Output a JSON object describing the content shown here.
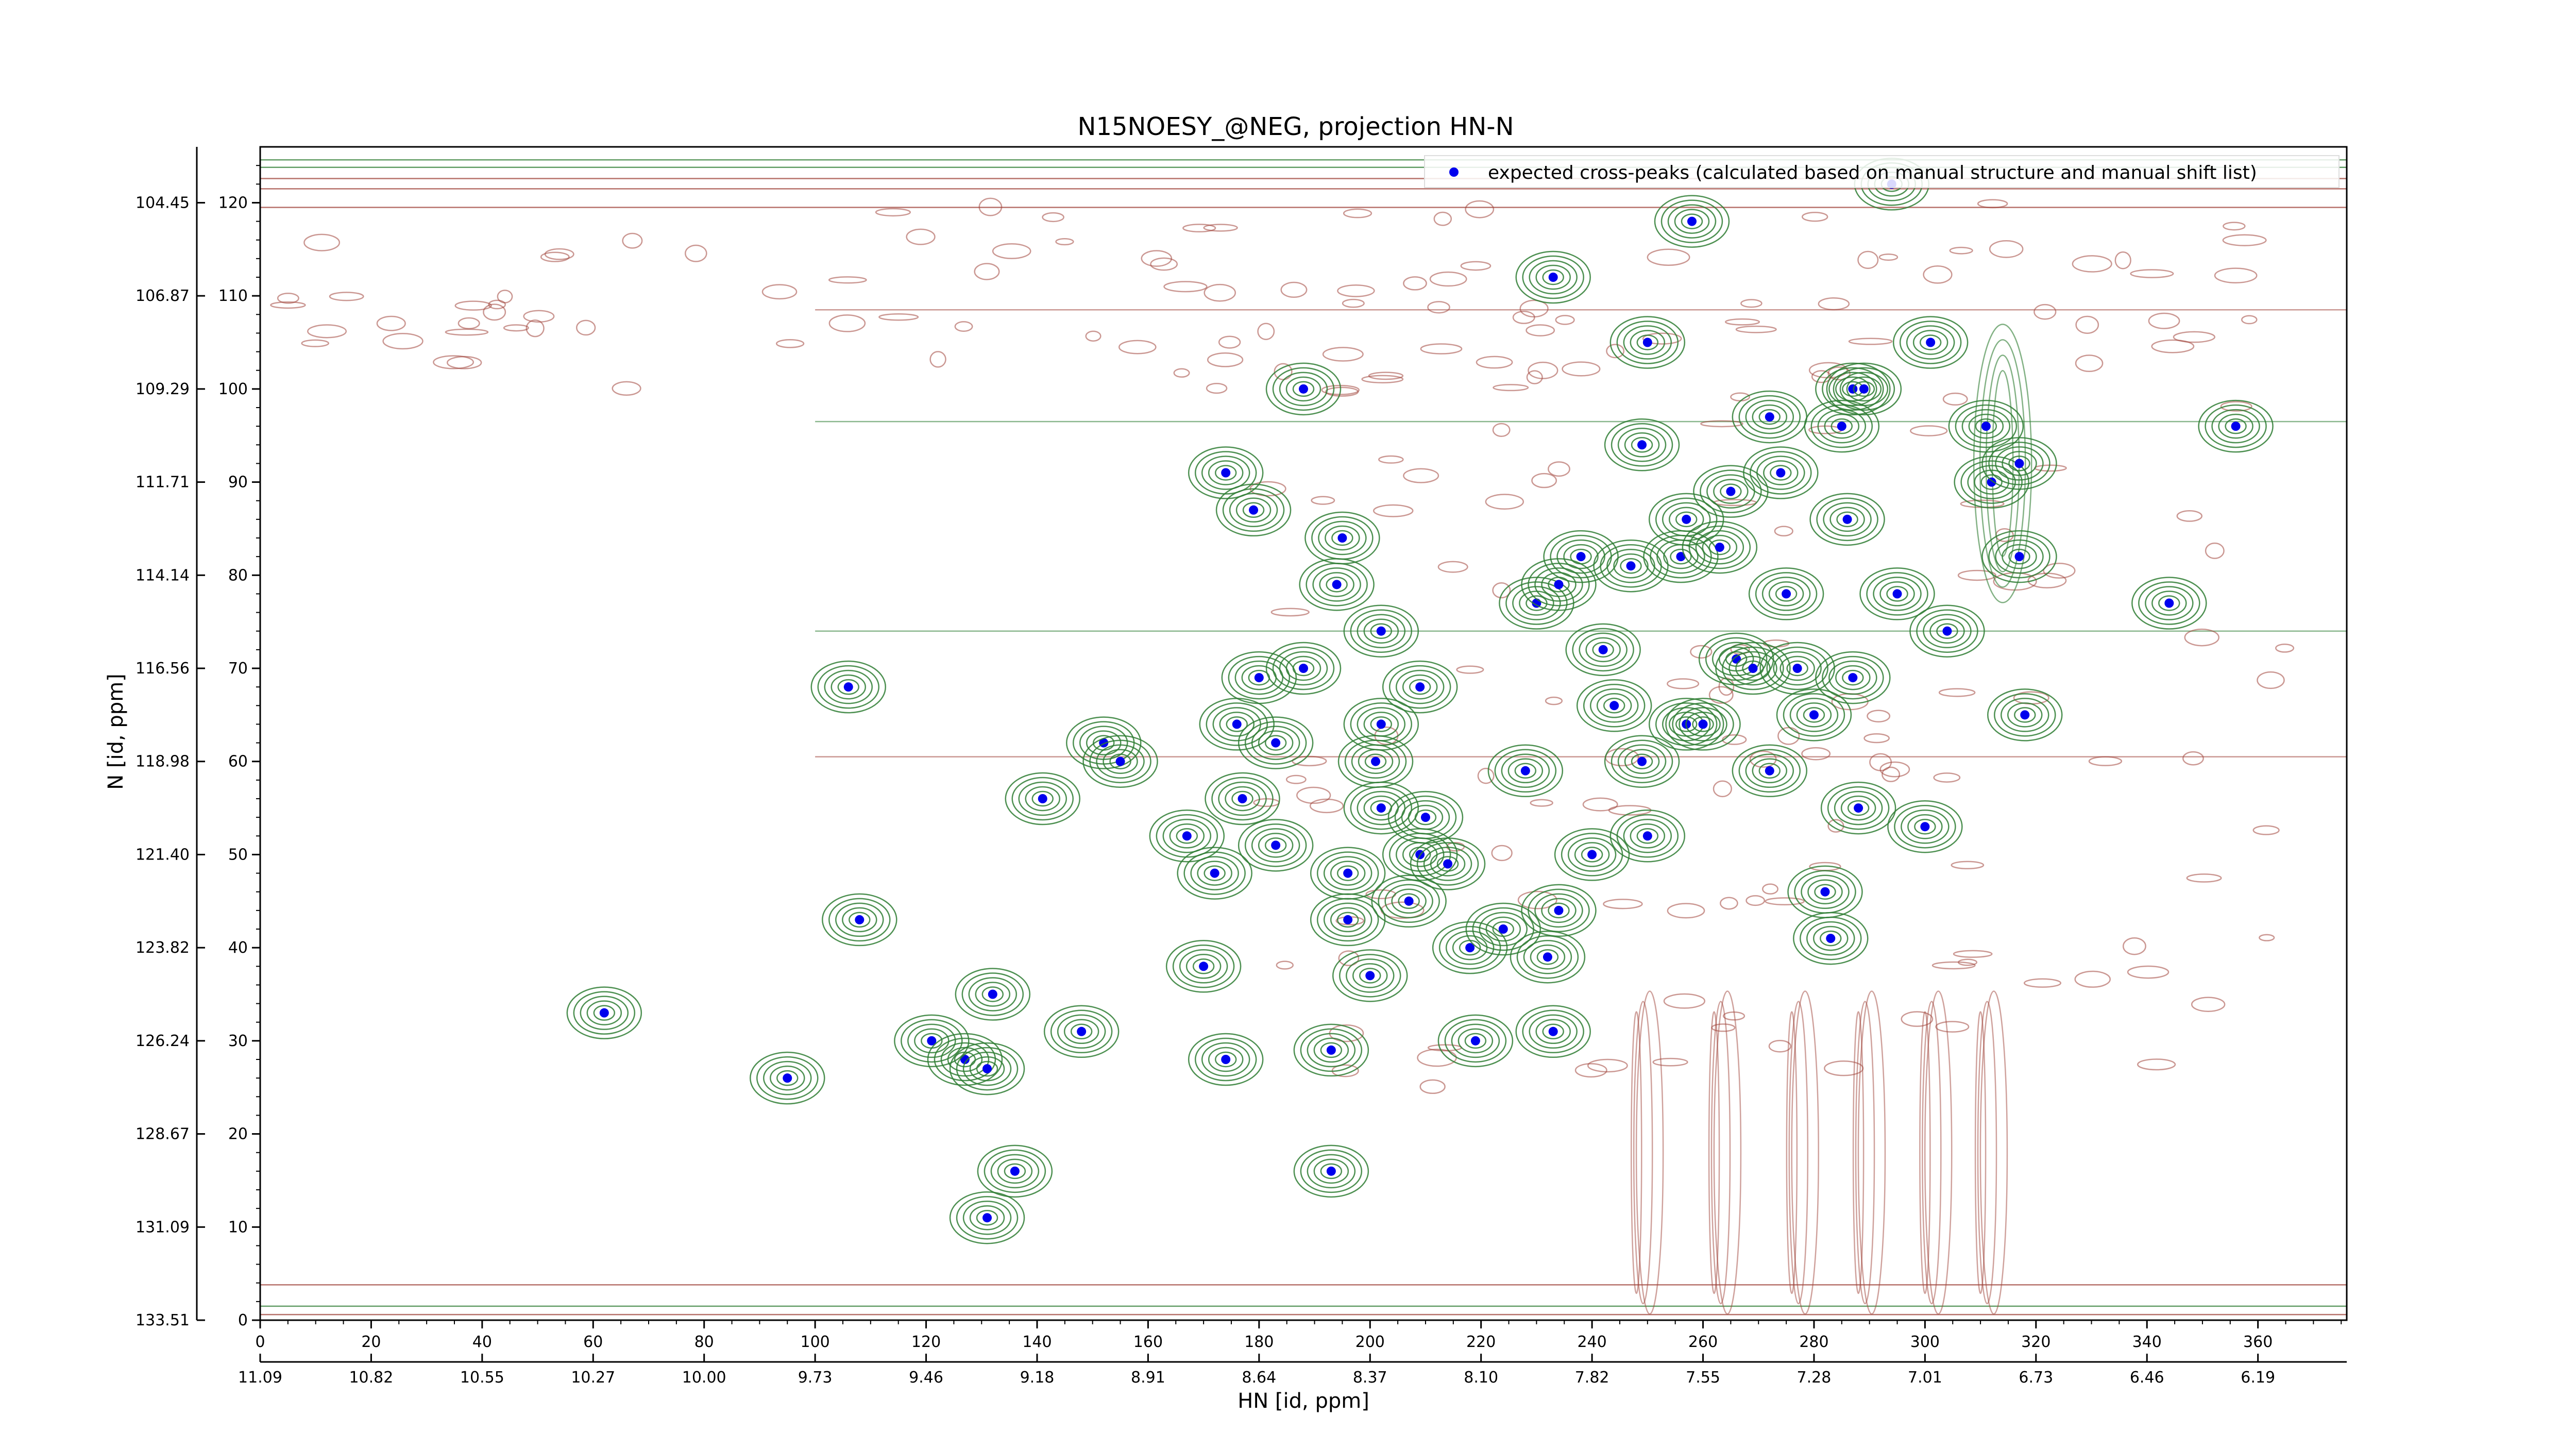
{
  "chart_data": {
    "type": "scatter",
    "title": "N15NOESY_@NEG, projection HN-N",
    "xlabel": "HN [id, ppm]",
    "ylabel": "N [id, ppm]",
    "x_index_ticks": [
      "0",
      "20",
      "40",
      "60",
      "80",
      "100",
      "120",
      "140",
      "160",
      "180",
      "200",
      "220",
      "240",
      "260",
      "280",
      "300",
      "320",
      "340",
      "360"
    ],
    "x_ppm_ticks": [
      "11.09",
      "10.82",
      "10.55",
      "10.27",
      "10.00",
      "9.73",
      "9.46",
      "9.18",
      "8.91",
      "8.64",
      "8.37",
      "8.10",
      "7.82",
      "7.55",
      "7.28",
      "7.01",
      "6.73",
      "6.46",
      "6.19"
    ],
    "y_index_ticks": [
      "0",
      "10",
      "20",
      "30",
      "40",
      "50",
      "60",
      "70",
      "80",
      "90",
      "100",
      "110",
      "120"
    ],
    "y_ppm_ticks": [
      "133.51",
      "131.09",
      "128.67",
      "126.24",
      "123.82",
      "121.40",
      "118.98",
      "116.56",
      "114.14",
      "111.71",
      "109.29",
      "106.87",
      "104.45"
    ],
    "xlim": [
      0,
      376
    ],
    "ylim": [
      0,
      126
    ],
    "grid": false,
    "legend_placement": "top-right",
    "colors": {
      "positive_contour": "#2e7d32",
      "negative_contour": "#a0433a",
      "peak_marker": "#0000ee"
    },
    "series": [
      {
        "name": "expected cross-peaks (calculated based on manual structure and manual shift list)",
        "points": [
          [
            106,
            68
          ],
          [
            108,
            43
          ],
          [
            62,
            33
          ],
          [
            95,
            26
          ],
          [
            121,
            30
          ],
          [
            127,
            28
          ],
          [
            131,
            27
          ],
          [
            132,
            35
          ],
          [
            131,
            11
          ],
          [
            136,
            16
          ],
          [
            148,
            31
          ],
          [
            141,
            56
          ],
          [
            152,
            62
          ],
          [
            155,
            60
          ],
          [
            167,
            52
          ],
          [
            172,
            48
          ],
          [
            170,
            38
          ],
          [
            174,
            28
          ],
          [
            174,
            91
          ],
          [
            179,
            87
          ],
          [
            176,
            64
          ],
          [
            177,
            56
          ],
          [
            180,
            69
          ],
          [
            183,
            62
          ],
          [
            183,
            51
          ],
          [
            188,
            70
          ],
          [
            188,
            100
          ],
          [
            193,
            29
          ],
          [
            193,
            16
          ],
          [
            195,
            84
          ],
          [
            194,
            79
          ],
          [
            196,
            48
          ],
          [
            196,
            43
          ],
          [
            200,
            37
          ],
          [
            202,
            74
          ],
          [
            202,
            64
          ],
          [
            201,
            60
          ],
          [
            202,
            55
          ],
          [
            207,
            45
          ],
          [
            209,
            50
          ],
          [
            210,
            54
          ],
          [
            209,
            68
          ],
          [
            214,
            49
          ],
          [
            218,
            40
          ],
          [
            219,
            30
          ],
          [
            224,
            42
          ],
          [
            230,
            77
          ],
          [
            233,
            112
          ],
          [
            228,
            59
          ],
          [
            232,
            39
          ],
          [
            234,
            44
          ],
          [
            233,
            31
          ],
          [
            234,
            79
          ],
          [
            238,
            82
          ],
          [
            240,
            50
          ],
          [
            242,
            72
          ],
          [
            244,
            66
          ],
          [
            247,
            81
          ],
          [
            249,
            60
          ],
          [
            250,
            52
          ],
          [
            249,
            94
          ],
          [
            250,
            105
          ],
          [
            256,
            82
          ],
          [
            257,
            64
          ],
          [
            257,
            86
          ],
          [
            258,
            118
          ],
          [
            260,
            64
          ],
          [
            263,
            83
          ],
          [
            265,
            89
          ],
          [
            266,
            71
          ],
          [
            269,
            70
          ],
          [
            272,
            59
          ],
          [
            272,
            97
          ],
          [
            274,
            91
          ],
          [
            275,
            78
          ],
          [
            277,
            70
          ],
          [
            280,
            65
          ],
          [
            282,
            46
          ],
          [
            283,
            41
          ],
          [
            285,
            96
          ],
          [
            286,
            86
          ],
          [
            287,
            69
          ],
          [
            288,
            55
          ],
          [
            287,
            100
          ],
          [
            289,
            100
          ],
          [
            294,
            122
          ],
          [
            295,
            78
          ],
          [
            300,
            53
          ],
          [
            301,
            105
          ],
          [
            304,
            74
          ],
          [
            311,
            96
          ],
          [
            312,
            90
          ],
          [
            317,
            92
          ],
          [
            317,
            82
          ],
          [
            318,
            65
          ],
          [
            344,
            77
          ],
          [
            356,
            96
          ]
        ]
      }
    ]
  }
}
